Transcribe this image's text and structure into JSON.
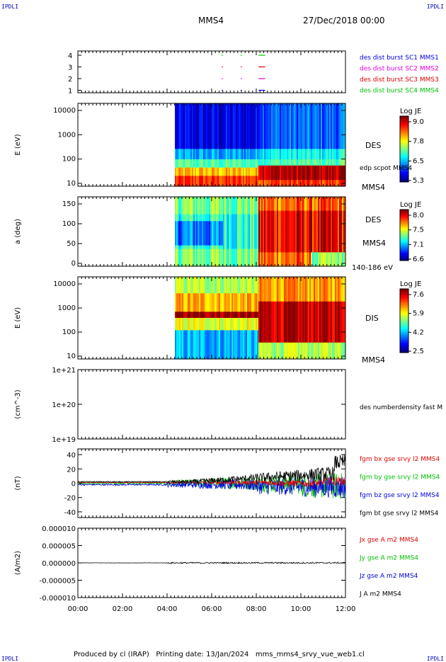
{
  "header": {
    "corner_label_left": "IPDLI",
    "corner_label_right": "IPDLI",
    "spacecraft": "MMS4",
    "datetime": "27/Dec/2018 00:00"
  },
  "footer": {
    "text": "Produced by cl (IRAP)   Printing date: 13/Jan/2024   mms_mms4_srvy_vue_web1.cl",
    "corner_label_left": "IPDLI",
    "corner_label_right": "IPDLI"
  },
  "colors": {
    "red": "#e00000",
    "green": "#00c000",
    "blue": "#0000e0",
    "magenta": "#e000e0",
    "black": "#000000"
  },
  "time_axis": {
    "ticks": [
      "00:00",
      "02:00",
      "04:00",
      "06:00",
      "08:00",
      "10:00",
      "12:00"
    ],
    "range_hours": [
      0,
      12
    ]
  },
  "chart_data": [
    {
      "type": "scatter",
      "panel": "burst",
      "y_ticks": [
        "4",
        "3",
        "2",
        "1"
      ],
      "series": [
        {
          "name": "des dist burst SC1 MMS1",
          "color": "#0000e0",
          "level": 1
        },
        {
          "name": "des dist burst SC2 MMS2",
          "color": "#e000e0",
          "level": 2
        },
        {
          "name": "des dist burst SC3 MMS3",
          "color": "#e00000",
          "level": 3
        },
        {
          "name": "des dist burst SC4 MMS4",
          "color": "#00c000",
          "level": 4
        }
      ],
      "segments_hours": [
        [
          6.45,
          6.5
        ],
        [
          7.3,
          7.35
        ],
        [
          8.1,
          8.4
        ]
      ]
    },
    {
      "type": "heatmap",
      "panel": "des-energy",
      "ylabel": "E (eV)",
      "y_ticks": [
        "10000",
        "1000",
        "100",
        "10"
      ],
      "ylim": [
        10,
        30000
      ],
      "yscale": "log",
      "colorbar": {
        "title": "Log JE",
        "ticks": [
          "9.0",
          "7.8",
          "6.5",
          "5.3"
        ]
      },
      "labels": [
        "DES",
        "edp scpot MMS4",
        "MMS4"
      ]
    },
    {
      "type": "heatmap",
      "panel": "des-pitch",
      "ylabel": "a (deg)",
      "y_ticks": [
        "150",
        "100",
        "50",
        "0"
      ],
      "ylim": [
        0,
        180
      ],
      "colorbar": {
        "title": "Log JE",
        "ticks": [
          "8.0",
          "7.5",
          "7.1",
          "6.6"
        ]
      },
      "labels": [
        "DES",
        "MMS4",
        "140-186 eV"
      ]
    },
    {
      "type": "heatmap",
      "panel": "dis-energy",
      "ylabel": "E (eV)",
      "y_ticks": [
        "10000",
        "1000",
        "100",
        "10"
      ],
      "ylim": [
        10,
        30000
      ],
      "yscale": "log",
      "colorbar": {
        "title": "Log JE",
        "ticks": [
          "7.6",
          "5.9",
          "4.2",
          "2.5"
        ]
      },
      "labels": [
        "DIS",
        "MMS4"
      ]
    },
    {
      "type": "line",
      "panel": "density",
      "ylabel": "(cm^-3)",
      "y_ticks": [
        "1e+21",
        "1e+20",
        "1e+19"
      ],
      "yscale": "log",
      "labels": [
        "des numberdensity fast M"
      ]
    },
    {
      "type": "line",
      "panel": "fgm",
      "ylabel": "(nT)",
      "y_ticks": [
        "40",
        "20",
        "0",
        "-20",
        "-40"
      ],
      "ylim": [
        -48,
        48
      ],
      "series": [
        {
          "name": "fgm bx gse srvy l2 MMS4",
          "color": "#e00000"
        },
        {
          "name": "fgm by gse srvy l2 MMS4",
          "color": "#00c000"
        },
        {
          "name": "fgm bz gse srvy l2 MMS4",
          "color": "#0000e0"
        },
        {
          "name": "fgm bt gse srvy l2 MMS4",
          "color": "#000000"
        }
      ]
    },
    {
      "type": "line",
      "panel": "current",
      "ylabel": "(A/m2)",
      "y_ticks": [
        "0.000010",
        "0.000005",
        "0.000000",
        "-0.000005",
        "-0.000010"
      ],
      "ylim": [
        -1e-05,
        1e-05
      ],
      "series": [
        {
          "name": "Jx gse A m2 MMS4",
          "color": "#e00000"
        },
        {
          "name": "Jy gse A m2 MMS4",
          "color": "#00c000"
        },
        {
          "name": "Jz gse A m2 MMS4",
          "color": "#0000e0"
        },
        {
          "name": "J A m2 MMS4",
          "color": "#000000"
        }
      ]
    }
  ]
}
